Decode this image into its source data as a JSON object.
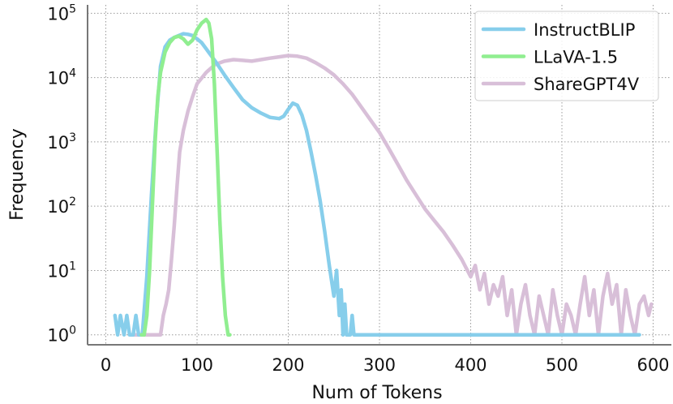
{
  "chart_data": {
    "type": "line",
    "xlabel": "Num of Tokens",
    "ylabel": "Frequency",
    "xlim": [
      -20,
      620
    ],
    "ylim": [
      1,
      100000.0
    ],
    "y_scale": "log",
    "x_ticks": [
      0,
      100,
      200,
      300,
      400,
      500,
      600
    ],
    "x_tick_labels": [
      "0",
      "100",
      "200",
      "300",
      "400",
      "500",
      "600"
    ],
    "y_ticks": [
      1,
      10,
      100,
      1000,
      10000,
      100000
    ],
    "y_tick_labels": [
      {
        "base": "10",
        "exp": "0"
      },
      {
        "base": "10",
        "exp": "1"
      },
      {
        "base": "10",
        "exp": "2"
      },
      {
        "base": "10",
        "exp": "3"
      },
      {
        "base": "10",
        "exp": "4"
      },
      {
        "base": "10",
        "exp": "5"
      }
    ],
    "grid": true,
    "legend_position": "top-right",
    "series": [
      {
        "name": "InstructBLIP",
        "color": "#87ceeb",
        "x": [
          10,
          13,
          16,
          20,
          23,
          26,
          30,
          33,
          36,
          40,
          45,
          50,
          55,
          60,
          65,
          70,
          75,
          80,
          85,
          90,
          95,
          100,
          105,
          110,
          120,
          130,
          140,
          150,
          160,
          170,
          180,
          190,
          195,
          200,
          205,
          210,
          215,
          220,
          225,
          230,
          235,
          240,
          245,
          250,
          253,
          256,
          258,
          260,
          262,
          264,
          266,
          268,
          270,
          272,
          275,
          280,
          300,
          400,
          500,
          585
        ],
        "y": [
          2,
          1,
          2,
          1,
          2,
          1,
          1,
          2,
          1,
          1,
          8,
          150,
          2000,
          15000,
          30000,
          38000,
          42000,
          45000,
          48000,
          47000,
          45000,
          40000,
          35000,
          28000,
          18000,
          11000,
          7000,
          4500,
          3400,
          2800,
          2400,
          2300,
          2500,
          3200,
          4000,
          3700,
          2600,
          1500,
          700,
          300,
          120,
          40,
          12,
          4,
          10,
          2,
          5,
          1,
          3,
          1,
          1,
          1,
          2,
          1,
          1,
          1,
          1,
          1,
          1,
          1
        ]
      },
      {
        "name": "LLaVA-1.5",
        "color": "#90ee90",
        "x": [
          39,
          42,
          45,
          48,
          51,
          54,
          57,
          60,
          65,
          70,
          75,
          80,
          85,
          90,
          95,
          100,
          105,
          110,
          113,
          116,
          119,
          122,
          125,
          128,
          131,
          134,
          136
        ],
        "y": [
          1,
          1,
          2,
          10,
          100,
          1000,
          5000,
          12000,
          25000,
          35000,
          42000,
          44000,
          40000,
          33000,
          38000,
          55000,
          70000,
          80000,
          70000,
          40000,
          8000,
          700,
          60,
          8,
          2,
          1,
          1
        ]
      },
      {
        "name": "ShareGPT4V",
        "color": "#d8bfd8",
        "x": [
          30,
          40,
          50,
          60,
          63,
          66,
          69,
          72,
          75,
          78,
          81,
          85,
          90,
          95,
          100,
          110,
          120,
          130,
          140,
          150,
          160,
          170,
          180,
          190,
          200,
          210,
          220,
          230,
          240,
          250,
          260,
          270,
          280,
          290,
          300,
          310,
          320,
          330,
          340,
          350,
          360,
          370,
          380,
          390,
          400,
          405,
          410,
          415,
          420,
          425,
          430,
          435,
          440,
          445,
          450,
          455,
          460,
          465,
          470,
          475,
          480,
          485,
          490,
          495,
          500,
          505,
          510,
          515,
          520,
          525,
          530,
          535,
          540,
          545,
          550,
          555,
          560,
          565,
          570,
          575,
          580,
          585,
          590,
          595,
          598
        ],
        "y": [
          1,
          1,
          1,
          1,
          2,
          3,
          5,
          15,
          50,
          200,
          700,
          1500,
          3000,
          5000,
          8000,
          12000,
          16000,
          18000,
          19000,
          18500,
          18000,
          19000,
          20000,
          21000,
          22000,
          21500,
          20000,
          17000,
          14000,
          11000,
          8000,
          5500,
          3500,
          2200,
          1400,
          800,
          450,
          250,
          150,
          90,
          60,
          40,
          25,
          15,
          8,
          12,
          5,
          9,
          3,
          6,
          4,
          8,
          2,
          5,
          1,
          3,
          6,
          2,
          1,
          4,
          2,
          1,
          5,
          2,
          1,
          3,
          2,
          1,
          3,
          8,
          2,
          5,
          1,
          4,
          9,
          3,
          6,
          1,
          5,
          2,
          1,
          3,
          4,
          2,
          3
        ]
      }
    ]
  }
}
